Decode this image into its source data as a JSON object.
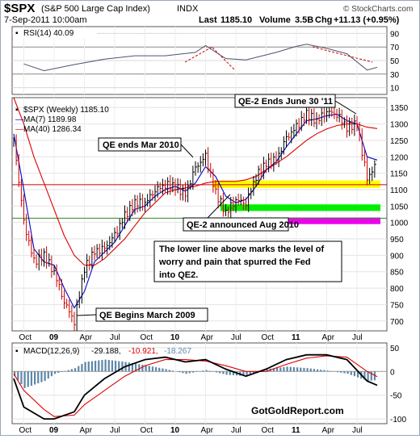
{
  "header": {
    "symbol": "$SPX",
    "description": "(S&P 500 Large Cap Index)",
    "exchange": "INDX",
    "watermark": "© StockCharts.com",
    "date": "7-Sep-2011 10:00am",
    "last_label": "Last",
    "last": "1185.10",
    "volume_label": "Volume",
    "volume": "3.5B",
    "chg_label": "Chg",
    "chg": "+11.13 (+0.95%)"
  },
  "colors": {
    "price": "#000000",
    "ma7": "#0000cc",
    "ma40": "#dd0000",
    "rsi": "#4a5570",
    "histogram": "#5d87a8",
    "yellow_band": "#ffff00",
    "green_band": "#00ee00",
    "magenta_band": "#ee00ee",
    "up_bar": "#000000",
    "down_bar": "#cc0000"
  },
  "rsi": {
    "legend": "RSI(14) 40.09",
    "ticks": [
      "90",
      "70",
      "50",
      "30",
      "10"
    ]
  },
  "price": {
    "legend": "$SPX (Weekly) 1185.10",
    "ma7_legend": "MA(7) 1189.98",
    "ma40_legend": "MA(40) 1286.34",
    "ticks": [
      "1350",
      "1300",
      "1250",
      "1200",
      "1150",
      "1100",
      "1050",
      "1000",
      "950",
      "900",
      "850",
      "800",
      "750",
      "700"
    ]
  },
  "macd": {
    "legend_main": "MACD(12,26,9)",
    "legend_v1": "-29.188,",
    "legend_v2": "-10.921,",
    "legend_v3": "-18.267",
    "ticks": [
      "50",
      "0",
      "-50",
      "-100"
    ]
  },
  "xaxis": {
    "labels": [
      "Oct",
      "09",
      "Apr",
      "Jul",
      "Oct",
      "10",
      "Apr",
      "Jul",
      "Oct",
      "11",
      "Apr",
      "Jul"
    ]
  },
  "annotations": {
    "qe2_ends": "QE-2 Ends June 30 '11",
    "qe_ends": "QE ends Mar 2010",
    "qe2_announced": "QE-2 announced Aug 2010",
    "note_line1": "The lower line above marks the level of",
    "note_line2": "worry and pain that spurred the Fed",
    "note_line3": "into QE2.",
    "qe_begins": "QE Begins March 2009"
  },
  "branding": "GotGoldReport.com",
  "chart_data": [
    {
      "type": "line",
      "name": "RSI(14)",
      "ylim": [
        0,
        100
      ],
      "ticks": [
        90,
        70,
        50,
        30,
        10
      ],
      "reference_lines": [
        70,
        30
      ],
      "x": [
        "2008-10",
        "2008-12",
        "2009-03",
        "2009-06",
        "2009-09",
        "2009-12",
        "2010-03",
        "2010-04",
        "2010-06",
        "2010-08",
        "2010-11",
        "2011-01",
        "2011-02",
        "2011-04",
        "2011-06",
        "2011-08",
        "2011-09"
      ],
      "values": [
        45,
        35,
        44,
        52,
        57,
        57,
        62,
        72,
        53,
        51,
        62,
        71,
        74,
        68,
        60,
        36,
        40
      ]
    },
    {
      "type": "line",
      "title": "$SPX (Weekly) 1185.10",
      "ylim": [
        670,
        1380
      ],
      "ticks": [
        1350,
        1300,
        1250,
        1200,
        1150,
        1100,
        1050,
        1000,
        950,
        900,
        850,
        800,
        750,
        700
      ],
      "x": [
        "2008-09",
        "2008-10",
        "2008-11",
        "2008-12",
        "2009-01",
        "2009-02",
        "2009-03",
        "2009-04",
        "2009-05",
        "2009-06",
        "2009-07",
        "2009-08",
        "2009-09",
        "2009-10",
        "2009-11",
        "2009-12",
        "2010-01",
        "2010-02",
        "2010-03",
        "2010-04",
        "2010-05",
        "2010-06",
        "2010-07",
        "2010-08",
        "2010-09",
        "2010-10",
        "2010-11",
        "2010-12",
        "2011-01",
        "2011-02",
        "2011-03",
        "2011-04",
        "2011-05",
        "2011-06",
        "2011-07",
        "2011-08",
        "2011-09"
      ],
      "series": [
        {
          "name": "$SPX",
          "values": [
            1250,
            1000,
            880,
            900,
            850,
            760,
            700,
            860,
            910,
            920,
            960,
            1020,
            1060,
            1060,
            1100,
            1115,
            1110,
            1085,
            1165,
            1200,
            1090,
            1030,
            1070,
            1060,
            1140,
            1180,
            1190,
            1255,
            1290,
            1330,
            1310,
            1340,
            1330,
            1290,
            1300,
            1130,
            1185
          ]
        },
        {
          "name": "MA(7)",
          "values": [
            1270,
            1100,
            920,
            880,
            870,
            800,
            740,
            790,
            880,
            910,
            940,
            990,
            1040,
            1050,
            1080,
            1100,
            1110,
            1095,
            1120,
            1170,
            1140,
            1080,
            1060,
            1070,
            1110,
            1160,
            1185,
            1230,
            1270,
            1310,
            1315,
            1325,
            1330,
            1310,
            1300,
            1200,
            1190
          ]
        },
        {
          "name": "MA(40)",
          "values": [
            1380,
            1300,
            1200,
            1120,
            1040,
            960,
            900,
            870,
            870,
            890,
            920,
            950,
            990,
            1030,
            1060,
            1090,
            1100,
            1105,
            1110,
            1120,
            1125,
            1125,
            1125,
            1130,
            1140,
            1160,
            1180,
            1200,
            1225,
            1250,
            1270,
            1285,
            1295,
            1300,
            1300,
            1290,
            1286
          ]
        }
      ],
      "reference_lines": [
        {
          "value": 1115,
          "color": "red"
        },
        {
          "value": 1013,
          "color": "green"
        }
      ],
      "bands": [
        {
          "from": 1105,
          "to": 1128,
          "color": "yellow"
        },
        {
          "from": 1035,
          "to": 1055,
          "color": "green"
        },
        {
          "from": 995,
          "to": 1015,
          "color": "magenta"
        }
      ],
      "annotations": [
        "QE-2 Ends June 30 '11",
        "QE ends Mar 2010",
        "QE-2 announced Aug 2010",
        "The lower line above marks the level of worry and pain that spurred the Fed into QE2.",
        "QE Begins March 2009"
      ]
    },
    {
      "type": "line",
      "name": "MACD(12,26,9)",
      "ylim": [
        -110,
        60
      ],
      "ticks": [
        50,
        0,
        -50,
        -100
      ],
      "x": [
        "2008-09",
        "2008-10",
        "2008-12",
        "2009-01",
        "2009-03",
        "2009-04",
        "2009-06",
        "2009-08",
        "2009-10",
        "2009-12",
        "2010-02",
        "2010-04",
        "2010-06",
        "2010-08",
        "2010-10",
        "2010-12",
        "2011-02",
        "2011-04",
        "2011-06",
        "2011-08",
        "2011-09"
      ],
      "series": [
        {
          "name": "MACD",
          "values": [
            -15,
            -75,
            -100,
            -100,
            -85,
            -50,
            -15,
            10,
            25,
            30,
            20,
            25,
            5,
            -10,
            5,
            25,
            35,
            35,
            25,
            -20,
            -29
          ]
        },
        {
          "name": "Signal",
          "values": [
            -5,
            -40,
            -80,
            -95,
            -92,
            -70,
            -40,
            -10,
            12,
            25,
            25,
            22,
            12,
            0,
            0,
            15,
            28,
            33,
            30,
            0,
            -11
          ]
        },
        {
          "name": "Histogram",
          "values": [
            -10,
            -35,
            -20,
            -5,
            7,
            20,
            25,
            20,
            13,
            5,
            -5,
            3,
            -7,
            -10,
            5,
            10,
            7,
            2,
            -5,
            -20,
            -18
          ]
        }
      ]
    }
  ]
}
